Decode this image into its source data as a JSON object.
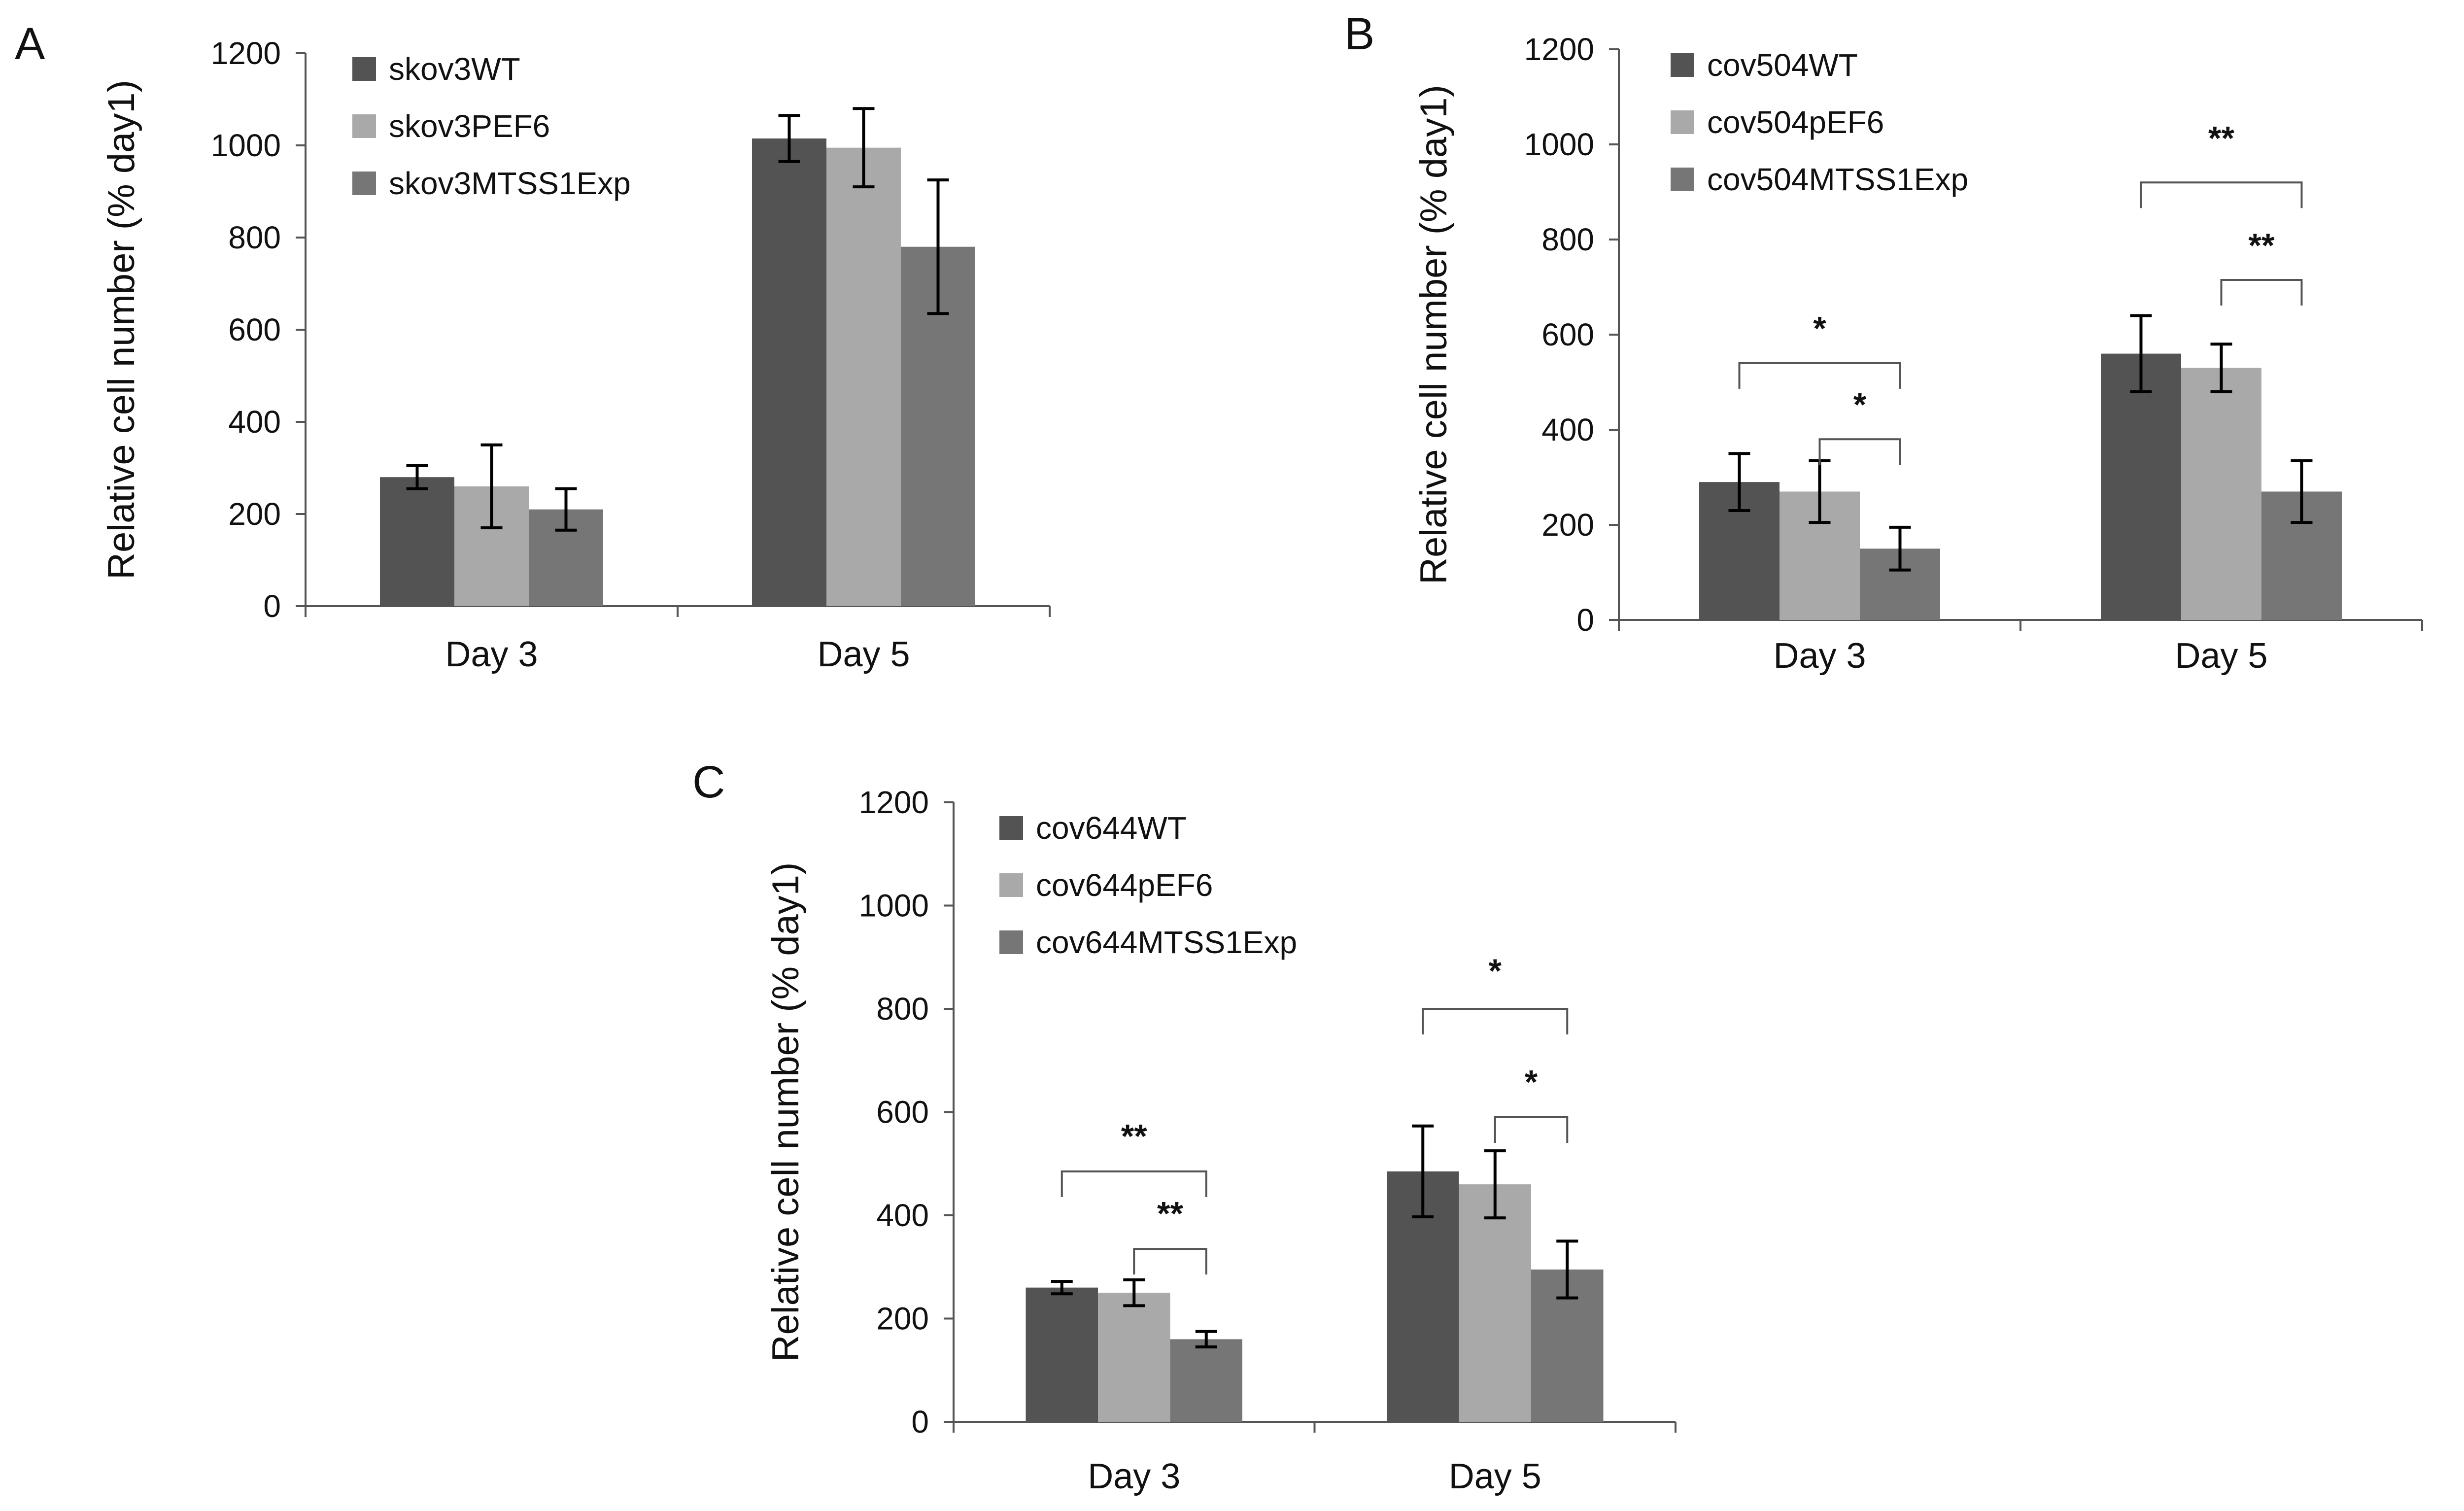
{
  "colors": {
    "wt": "#535353",
    "pef6": "#a9a9a9",
    "mtss1": "#767676"
  },
  "chart_data": [
    {
      "panel": "A",
      "type": "bar",
      "ylabel": "Relative cell number (% day1)",
      "ylim": [
        0,
        1200
      ],
      "yticks": [
        "0",
        "200",
        "400",
        "600",
        "800",
        "1000",
        "1200"
      ],
      "categories": [
        "Day 3",
        "Day 5"
      ],
      "series": [
        {
          "name": "skov3WT",
          "color_key": "wt",
          "values": [
            280,
            1015
          ],
          "errors": [
            25,
            50
          ]
        },
        {
          "name": "skov3PEF6",
          "color_key": "pef6",
          "values": [
            260,
            995
          ],
          "errors": [
            90,
            85
          ]
        },
        {
          "name": "skov3MTSS1Exp",
          "color_key": "mtss1",
          "values": [
            210,
            780
          ],
          "errors": [
            45,
            145
          ]
        }
      ],
      "annotations": []
    },
    {
      "panel": "B",
      "type": "bar",
      "ylabel": "Relative cell number (% day1)",
      "ylim": [
        0,
        1200
      ],
      "yticks": [
        "0",
        "200",
        "400",
        "600",
        "800",
        "1000",
        "1200"
      ],
      "categories": [
        "Day 3",
        "Day 5"
      ],
      "series": [
        {
          "name": "cov504WT",
          "color_key": "wt",
          "values": [
            290,
            560
          ],
          "errors": [
            60,
            80
          ]
        },
        {
          "name": "cov504pEF6",
          "color_key": "pef6",
          "values": [
            270,
            530
          ],
          "errors": [
            65,
            50
          ]
        },
        {
          "name": "cov504MTSS1Exp",
          "color_key": "mtss1",
          "values": [
            150,
            270
          ],
          "errors": [
            45,
            65
          ]
        }
      ],
      "annotations": [
        {
          "label": "*",
          "category": 0,
          "from_series": 0,
          "to_series": 2,
          "level": 540,
          "label_value": 620
        },
        {
          "label": "*",
          "category": 0,
          "from_series": 1,
          "to_series": 2,
          "level": 380,
          "label_value": 460
        },
        {
          "label": "**",
          "category": 1,
          "from_series": 0,
          "to_series": 2,
          "level": 920,
          "label_value": 1020
        },
        {
          "label": "**",
          "category": 1,
          "from_series": 1,
          "to_series": 2,
          "level": 715,
          "label_value": 795
        }
      ]
    },
    {
      "panel": "C",
      "type": "bar",
      "ylabel": "Relative cell number (% day1)",
      "ylim": [
        0,
        1200
      ],
      "yticks": [
        "0",
        "200",
        "400",
        "600",
        "800",
        "1000",
        "1200"
      ],
      "categories": [
        "Day 3",
        "Day 5"
      ],
      "series": [
        {
          "name": "cov644WT",
          "color_key": "wt",
          "values": [
            260,
            485
          ],
          "errors": [
            12,
            88
          ]
        },
        {
          "name": "cov644pEF6",
          "color_key": "pef6",
          "values": [
            250,
            460
          ],
          "errors": [
            25,
            65
          ]
        },
        {
          "name": "cov644MTSS1Exp",
          "color_key": "mtss1",
          "values": [
            160,
            295
          ],
          "errors": [
            15,
            55
          ]
        }
      ],
      "annotations": [
        {
          "label": "**",
          "category": 0,
          "from_series": 0,
          "to_series": 2,
          "level": 485,
          "label_value": 560
        },
        {
          "label": "**",
          "category": 0,
          "from_series": 1,
          "to_series": 2,
          "level": 335,
          "label_value": 410
        },
        {
          "label": "*",
          "category": 1,
          "from_series": 0,
          "to_series": 2,
          "level": 800,
          "label_value": 880
        },
        {
          "label": "*",
          "category": 1,
          "from_series": 1,
          "to_series": 2,
          "level": 590,
          "label_value": 665
        }
      ]
    }
  ]
}
